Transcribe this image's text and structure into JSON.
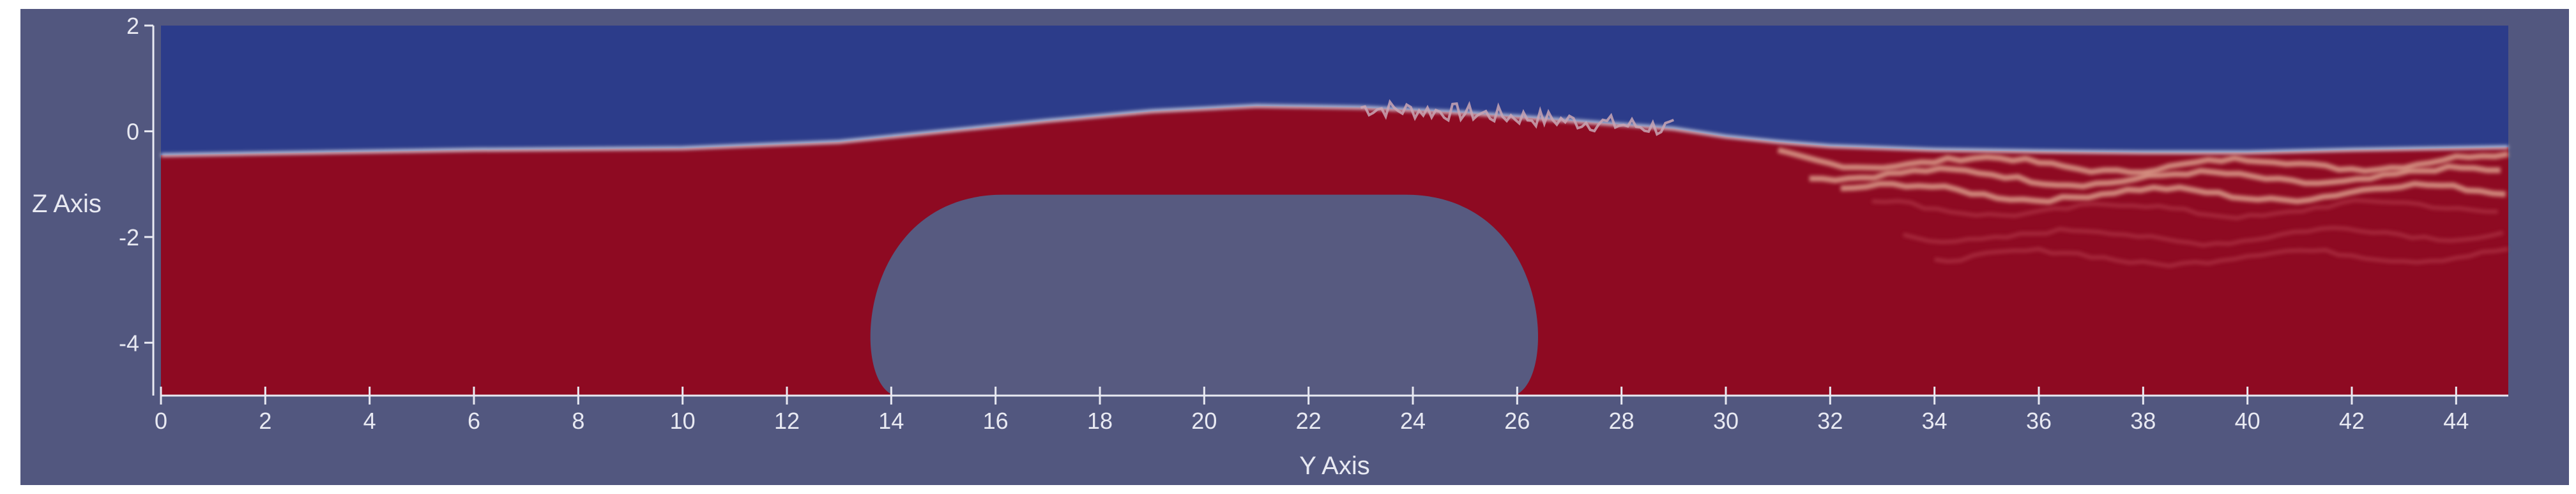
{
  "chart_data": {
    "type": "heatmap",
    "title": "",
    "xlabel": "Y Axis",
    "ylabel": "Z Axis",
    "xlim": [
      0,
      45
    ],
    "ylim": [
      -5,
      2
    ],
    "x_ticks": [
      "0",
      "2",
      "4",
      "6",
      "8",
      "10",
      "12",
      "14",
      "16",
      "18",
      "20",
      "22",
      "24",
      "26",
      "28",
      "30",
      "32",
      "34",
      "36",
      "38",
      "40",
      "42",
      "44"
    ],
    "y_ticks": [
      "2",
      "0",
      "-2",
      "-4"
    ],
    "grid": false,
    "legend": "none",
    "colors": {
      "background": "#52577f",
      "upper_phase": "#2c3c8a",
      "lower_phase": "#8e0a22",
      "interface": "#d9dbe6",
      "obstacle": "#575a80",
      "axis": "#e8e9f2"
    },
    "free_surface": {
      "y": [
        0,
        6,
        10,
        13,
        15,
        17,
        19,
        21,
        23,
        25,
        27,
        29,
        30,
        31,
        32,
        34,
        36,
        38,
        40,
        42,
        45
      ],
      "z": [
        -0.45,
        -0.35,
        -0.32,
        -0.2,
        0,
        0.2,
        0.38,
        0.48,
        0.45,
        0.35,
        0.2,
        0.05,
        -0.1,
        -0.2,
        -0.28,
        -0.35,
        -0.38,
        -0.4,
        -0.4,
        -0.35,
        -0.3
      ]
    },
    "obstacle": {
      "y_range": [
        13.7,
        26.3
      ],
      "z_top": -1.2,
      "z_bottom": -5,
      "shape": "rounded-rectangle"
    },
    "turbulent_region": {
      "breaking_crest_y_range": [
        23,
        29
      ],
      "wake_y_range": [
        31,
        45
      ]
    }
  }
}
